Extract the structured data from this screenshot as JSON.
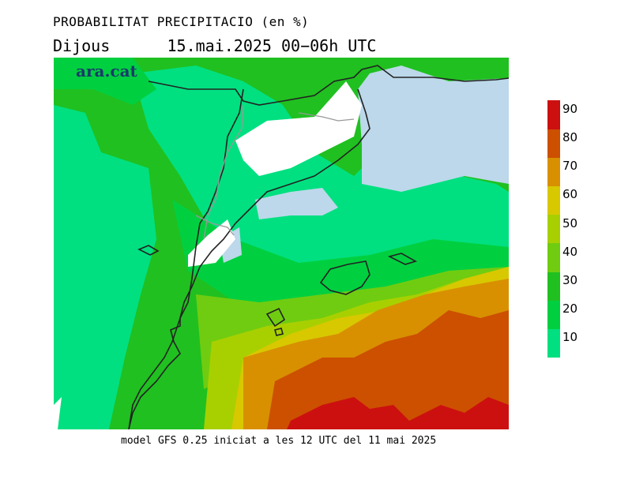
{
  "title": "PROBABILITAT PRECIPITACIO (en %)",
  "day": "Dijous",
  "date_range": "15.mai.2025 00−06h UTC",
  "brand": "ara.cat",
  "footer": "model GFS 0.25 iniciat a les 12 UTC del 11 mai 2025",
  "legend": {
    "bins": [
      {
        "from": 10,
        "to": 20,
        "color": "#00e080"
      },
      {
        "from": 20,
        "to": 30,
        "color": "#00d040"
      },
      {
        "from": 30,
        "to": 40,
        "color": "#20c020"
      },
      {
        "from": 40,
        "to": 50,
        "color": "#70cc10"
      },
      {
        "from": 50,
        "to": 60,
        "color": "#a8d000"
      },
      {
        "from": 60,
        "to": 70,
        "color": "#d8c800"
      },
      {
        "from": 70,
        "to": 80,
        "color": "#d89000"
      },
      {
        "from": 80,
        "to": 90,
        "color": "#cc5000"
      },
      {
        "from": 90,
        "to": 100,
        "color": "#cc1010"
      }
    ],
    "ticks": [
      "10",
      "20",
      "30",
      "40",
      "50",
      "60",
      "70",
      "80",
      "90"
    ]
  },
  "colors": {
    "below_threshold_land": "#ffffff",
    "below_threshold_sea": "#bcd8ea",
    "coastline": "#222222",
    "border": "#999999"
  }
}
